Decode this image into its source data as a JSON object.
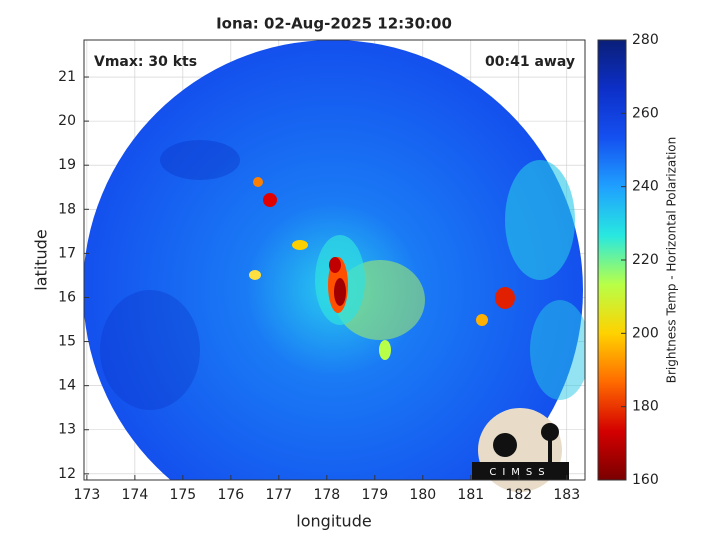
{
  "chart_data": {
    "type": "image",
    "title": "Iona: 02-Aug-2025 12:30:00",
    "annotations": [
      "Vmax: 30 kts",
      "00:41 away"
    ],
    "xlabel": "longitude",
    "ylabel": "latitude",
    "xlim": [
      172.94,
      183.38
    ],
    "xticks": [
      173,
      174,
      175,
      176,
      177,
      178,
      179,
      180,
      181,
      182,
      183
    ],
    "ylim": [
      11.86,
      21.84
    ],
    "yticks": [
      12,
      13,
      14,
      15,
      16,
      17,
      18,
      19,
      20,
      21
    ],
    "grid": true,
    "colorbar": {
      "label": "Brightness Temp - Horizontal Polarization",
      "lim": [
        160,
        280
      ],
      "ticks": [
        160,
        180,
        200,
        220,
        240,
        260,
        280
      ],
      "colormap": [
        "#7a0000",
        "#d40000",
        "#ff6a00",
        "#ffd200",
        "#b8ff48",
        "#28e8e0",
        "#1fa0ff",
        "#1550f0",
        "#0d2fc8",
        "#0a1f78"
      ]
    },
    "logo": "CIMSS"
  }
}
